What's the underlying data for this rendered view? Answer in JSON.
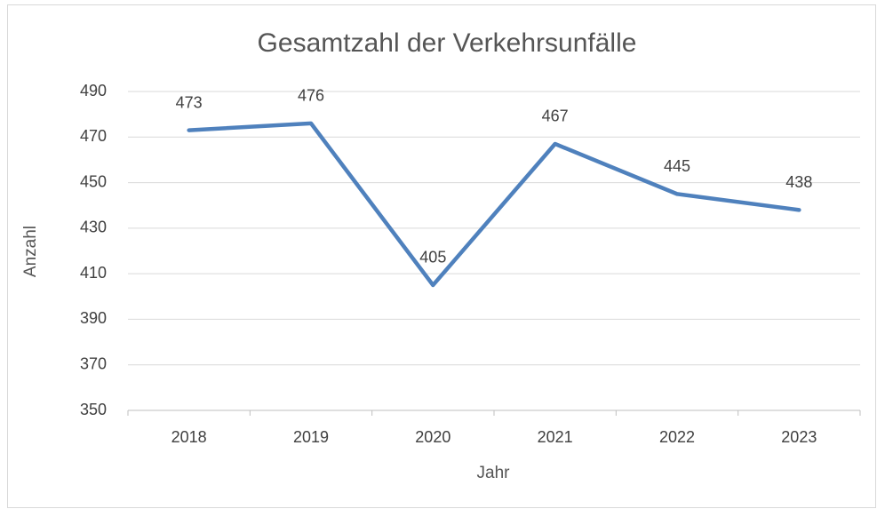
{
  "chart_data": {
    "type": "line",
    "title": "Gesamtzahl der Verkehrsunfälle",
    "x_label": "Jahr",
    "y_label": "Anzahl",
    "categories": [
      "2018",
      "2019",
      "2020",
      "2021",
      "2022",
      "2023"
    ],
    "series": [
      {
        "name": "Anzahl",
        "color": "#4f81bd",
        "values": [
          473,
          476,
          405,
          467,
          445,
          438
        ]
      }
    ],
    "ylim": [
      350,
      490
    ],
    "yticks": [
      350,
      370,
      390,
      410,
      430,
      450,
      470,
      490
    ],
    "grid": true
  }
}
